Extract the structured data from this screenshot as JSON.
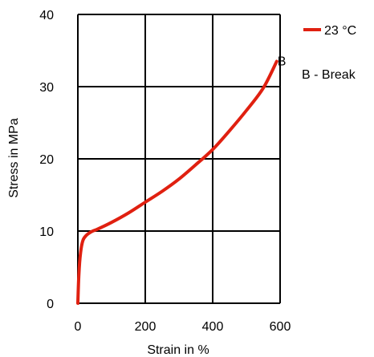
{
  "chart_data": {
    "type": "line",
    "title": "",
    "xlabel": "Strain in %",
    "ylabel": "Stress in MPa",
    "xlim": [
      0,
      600
    ],
    "ylim": [
      0,
      40
    ],
    "x_ticks": [
      0,
      200,
      400,
      600
    ],
    "y_ticks": [
      0,
      10,
      20,
      30,
      40
    ],
    "x_tick_labels": [
      "0",
      "200",
      "400",
      "600"
    ],
    "y_tick_labels": [
      "0",
      "10",
      "20",
      "30",
      "40"
    ],
    "grid": true,
    "legend_position": "top-right",
    "series": [
      {
        "name": "23 °C",
        "color": "#e02010",
        "x": [
          0,
          3,
          8,
          15,
          25,
          40,
          60,
          100,
          150,
          200,
          250,
          300,
          350,
          400,
          450,
          500,
          550,
          590
        ],
        "y": [
          0,
          4,
          7,
          8.7,
          9.4,
          9.9,
          10.3,
          11.2,
          12.5,
          14,
          15.5,
          17.2,
          19.2,
          21.3,
          23.9,
          26.7,
          29.8,
          33.5
        ]
      }
    ],
    "annotations": [
      {
        "text": "B",
        "x": 590,
        "y": 33.5,
        "color": "#e02010"
      }
    ],
    "legend_note": "B - Break"
  }
}
